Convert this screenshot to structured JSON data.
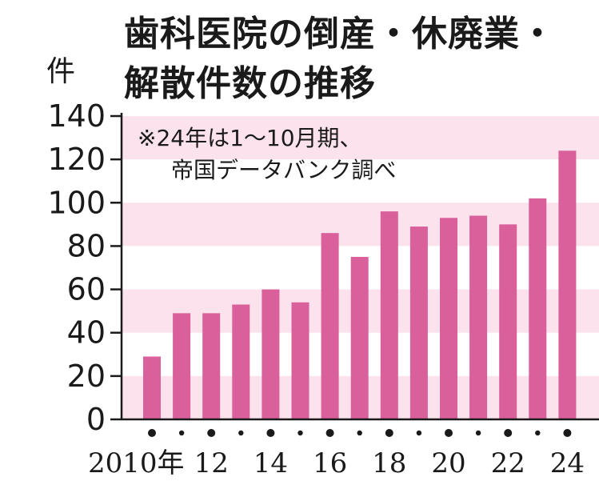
{
  "colors": {
    "bar": "#d9609a",
    "band": "#fbe2ec",
    "axis": "#1a1a1a",
    "text": "#1a1a1a"
  },
  "title_lines": [
    "歯科医院の倒産・休廃業・",
    "解散件数の推移"
  ],
  "note_lines": [
    "※24年は1～10月期、",
    "帝国データバンク調べ"
  ],
  "chart_data": {
    "type": "bar",
    "unit": "件",
    "categories": [
      "2010",
      "2011",
      "2012",
      "2013",
      "2014",
      "2015",
      "2016",
      "2017",
      "2018",
      "2019",
      "2020",
      "2021",
      "2022",
      "2023",
      "2024"
    ],
    "values": [
      29,
      49,
      49,
      53,
      60,
      54,
      86,
      75,
      96,
      89,
      93,
      94,
      90,
      102,
      124
    ],
    "x_tick_labels": [
      "2010年",
      "12",
      "14",
      "16",
      "18",
      "20",
      "22",
      "24"
    ],
    "y_ticks": [
      0,
      20,
      40,
      60,
      80,
      100,
      120,
      140
    ],
    "ylim": [
      0,
      140
    ],
    "grid": "alternating horizontal bands"
  }
}
